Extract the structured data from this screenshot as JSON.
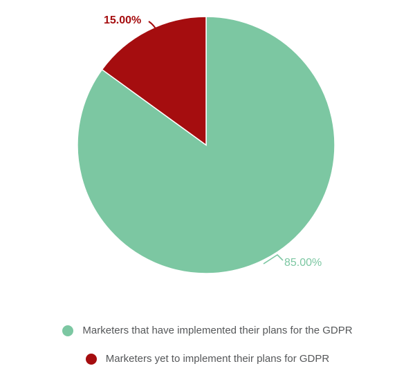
{
  "chart_data": {
    "type": "pie",
    "title": "",
    "categories": [
      "Marketers that have implemented their plans for the GDPR",
      "Marketers yet to implement their plans for GDPR"
    ],
    "values": [
      85,
      15
    ],
    "value_labels": [
      "85.00%",
      "15.00%"
    ],
    "colors": [
      "#7CC7A2",
      "#A50D0F"
    ],
    "slice_border_color": "#ffffff",
    "legend_position": "bottom",
    "start_angle_deg": 0,
    "direction": "clockwise",
    "background_color": "#ffffff",
    "legend_text_color": "#555759"
  }
}
